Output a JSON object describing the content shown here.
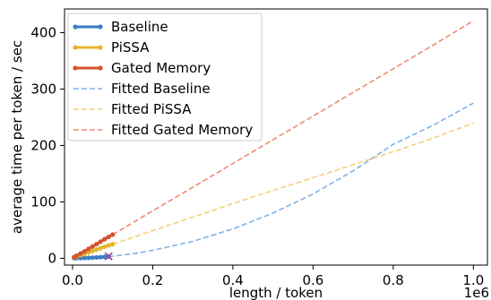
{
  "chart_data": {
    "type": "line",
    "title": "",
    "xlabel": "length / token",
    "ylabel": "average time per token / sec",
    "x_offset_text": "1e6",
    "xlim": [
      -0.02,
      1.035
    ],
    "ylim": [
      -12,
      442
    ],
    "x_ticks": [
      0.0,
      0.2,
      0.4,
      0.6,
      0.8,
      1.0
    ],
    "x_tick_labels": [
      "0.0",
      "0.2",
      "0.4",
      "0.6",
      "0.8",
      "1.0"
    ],
    "y_ticks": [
      0,
      100,
      200,
      300,
      400
    ],
    "y_tick_labels": [
      "0",
      "100",
      "200",
      "300",
      "400"
    ],
    "grid": false,
    "legend_position": "top-left",
    "series": [
      {
        "name": "Baseline",
        "kind": "measured",
        "color": "#3a7dc9",
        "x": [
          0.004,
          0.01,
          0.02,
          0.03,
          0.04,
          0.05,
          0.06,
          0.07,
          0.08,
          0.09
        ],
        "y": [
          0.2,
          0.3,
          0.4,
          0.6,
          0.9,
          1.2,
          1.6,
          2.0,
          2.6,
          3.2
        ]
      },
      {
        "name": "PiSSA",
        "kind": "measured",
        "color": "#e3b52c",
        "x": [
          0.004,
          0.01,
          0.02,
          0.03,
          0.04,
          0.05,
          0.06,
          0.07,
          0.08,
          0.09,
          0.1
        ],
        "y": [
          1.5,
          3.0,
          5.5,
          8.0,
          10.5,
          13.0,
          15.5,
          18.0,
          20.5,
          23.0,
          25.0
        ]
      },
      {
        "name": "Gated Memory",
        "kind": "measured",
        "color": "#d4532f",
        "x": [
          0.004,
          0.01,
          0.02,
          0.03,
          0.04,
          0.05,
          0.06,
          0.07,
          0.08,
          0.09,
          0.1
        ],
        "y": [
          2.0,
          4.5,
          8.5,
          12.5,
          16.8,
          21.0,
          25.2,
          29.5,
          33.8,
          38.0,
          42.0
        ]
      },
      {
        "name": "Fitted Baseline",
        "kind": "fitted",
        "color": "#7fb2e6",
        "x": [
          0.09,
          0.15,
          0.2,
          0.3,
          0.4,
          0.5,
          0.6,
          0.7,
          0.8,
          0.9,
          1.0
        ],
        "y": [
          3,
          8,
          14,
          30,
          52,
          80,
          114,
          155,
          202,
          236,
          275
        ]
      },
      {
        "name": "Fitted PiSSA",
        "kind": "fitted",
        "color": "#f1d27a",
        "x": [
          0.1,
          0.2,
          0.3,
          0.4,
          0.5,
          0.6,
          0.7,
          0.8,
          0.9,
          1.0
        ],
        "y": [
          25,
          49,
          73,
          97,
          120,
          143,
          166,
          189,
          213,
          240
        ]
      },
      {
        "name": "Fitted Gated Memory",
        "kind": "fitted",
        "color": "#ee8c72",
        "x": [
          0.1,
          0.2,
          0.3,
          0.4,
          0.5,
          0.6,
          0.7,
          0.8,
          0.9,
          1.0
        ],
        "y": [
          42,
          84,
          126,
          168,
          210,
          252,
          294,
          336,
          378,
          421
        ]
      }
    ],
    "marker_points": [
      {
        "symbol": "x",
        "x": 0.09,
        "y": 3.5,
        "color": "#9b4f9c"
      }
    ]
  }
}
